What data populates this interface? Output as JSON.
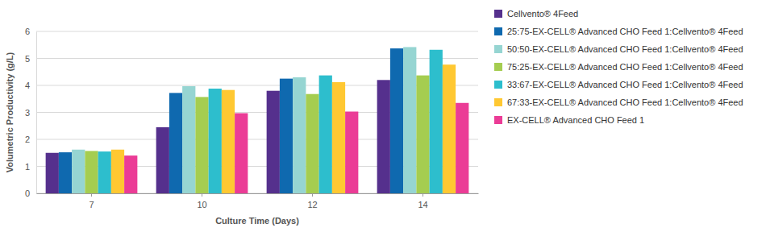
{
  "chart_data": {
    "type": "bar",
    "x_label": "Culture Time (Days)",
    "y_label": "Volumetric Productivity (g/L)",
    "categories": [
      "7",
      "10",
      "12",
      "14"
    ],
    "series": [
      {
        "name": "Cellvento® 4Feed",
        "color": "#55308d",
        "values": [
          1.5,
          2.45,
          3.8,
          4.2
        ]
      },
      {
        "name": "25:75-EX-CELL® Advanced CHO Feed 1:Cellvento® 4Feed",
        "color": "#0f69af",
        "values": [
          1.52,
          3.72,
          4.25,
          5.37
        ]
      },
      {
        "name": "50:50-EX-CELL® Advanced CHO Feed 1:Cellvento® 4Feed",
        "color": "#96d5d2",
        "values": [
          1.62,
          3.97,
          4.3,
          5.42
        ]
      },
      {
        "name": "75:25-EX-CELL® Advanced CHO Feed 1:Cellvento® 4Feed",
        "color": "#a5cd50",
        "values": [
          1.57,
          3.57,
          3.68,
          4.37
        ]
      },
      {
        "name": "33:67-EX-CELL® Advanced CHO Feed 1:Cellvento® 4Feed",
        "color": "#2dbecd",
        "values": [
          1.55,
          3.88,
          4.37,
          5.32
        ]
      },
      {
        "name": "67:33-EX-CELL® Advanced CHO Feed 1:Cellvento® 4Feed",
        "color": "#ffc832",
        "values": [
          1.62,
          3.83,
          4.12,
          4.77
        ]
      },
      {
        "name": "EX-CELL® Advanced CHO Feed 1",
        "color": "#eb3c96",
        "values": [
          1.4,
          2.97,
          3.03,
          3.35
        ]
      }
    ],
    "ylim": [
      0,
      6
    ],
    "yticks": [
      0,
      1,
      2,
      3,
      4,
      5,
      6
    ],
    "grid": true,
    "legend": "right"
  }
}
